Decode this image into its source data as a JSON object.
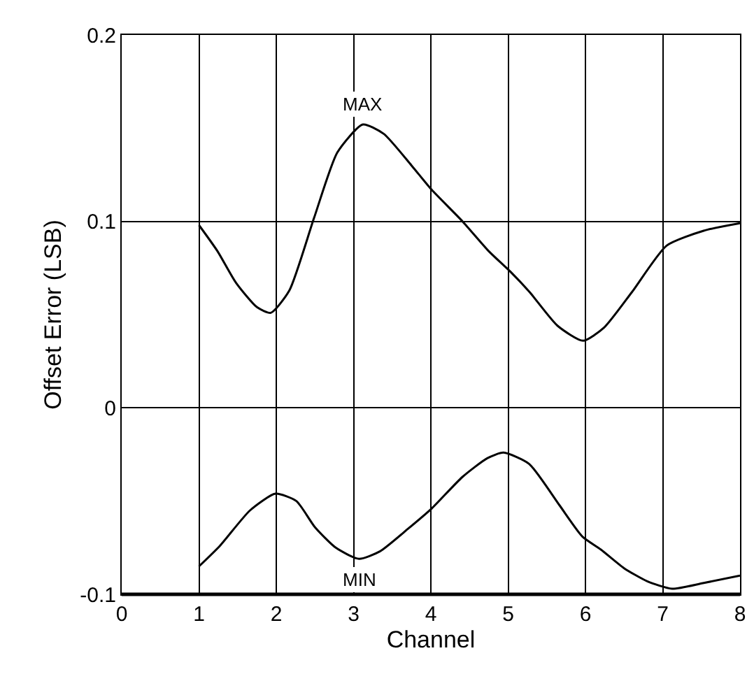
{
  "chart_data": {
    "type": "line",
    "xlabel": "Channel",
    "ylabel": "Offset Error (LSB)",
    "xlim": [
      0,
      8
    ],
    "xticks": [
      0,
      1,
      2,
      3,
      4,
      5,
      6,
      7,
      8
    ],
    "ylim": [
      -0.1,
      0.2
    ],
    "yticks": [
      -0.1,
      0,
      0.1,
      0.2
    ],
    "grid": true,
    "marker": "none",
    "line_style": "solid",
    "series": [
      {
        "color": "#000000",
        "x": [
          1,
          1.24,
          1.48,
          1.75,
          1.93,
          2.17,
          2.49,
          2.79,
          3.12,
          3.39,
          3.75,
          4.01,
          4.41,
          4.75,
          5.03,
          5.28,
          5.64,
          5.97,
          6.24,
          6.6,
          7.05,
          7.53,
          8
        ],
        "values": [
          0.098,
          0.084,
          0.067,
          0.054,
          0.051,
          0.063,
          0.102,
          0.137,
          0.152,
          0.147,
          0.13,
          0.117,
          0.1,
          0.084,
          0.073,
          0.062,
          0.044,
          0.036,
          0.043,
          0.062,
          0.087,
          0.095,
          0.099
        ]
      },
      {
        "color": "#000000",
        "x": [
          1,
          1.27,
          1.66,
          1.99,
          2.26,
          2.5,
          2.77,
          3.07,
          3.34,
          3.7,
          4.01,
          4.41,
          4.73,
          4.94,
          5.27,
          5.66,
          5.96,
          6.2,
          6.5,
          6.8,
          7.12,
          7.52,
          8
        ],
        "values": [
          -0.085,
          -0.074,
          -0.055,
          -0.046,
          -0.05,
          -0.064,
          -0.075,
          -0.081,
          -0.077,
          -0.065,
          -0.054,
          -0.037,
          -0.027,
          -0.024,
          -0.03,
          -0.052,
          -0.069,
          -0.076,
          -0.086,
          -0.093,
          -0.097,
          -0.094,
          -0.09
        ]
      }
    ],
    "annotations": [
      {
        "text": "MAX",
        "x": 3.12,
        "y": 0.152
      },
      {
        "text": "MIN",
        "x": 3.07,
        "y": -0.081
      }
    ]
  }
}
